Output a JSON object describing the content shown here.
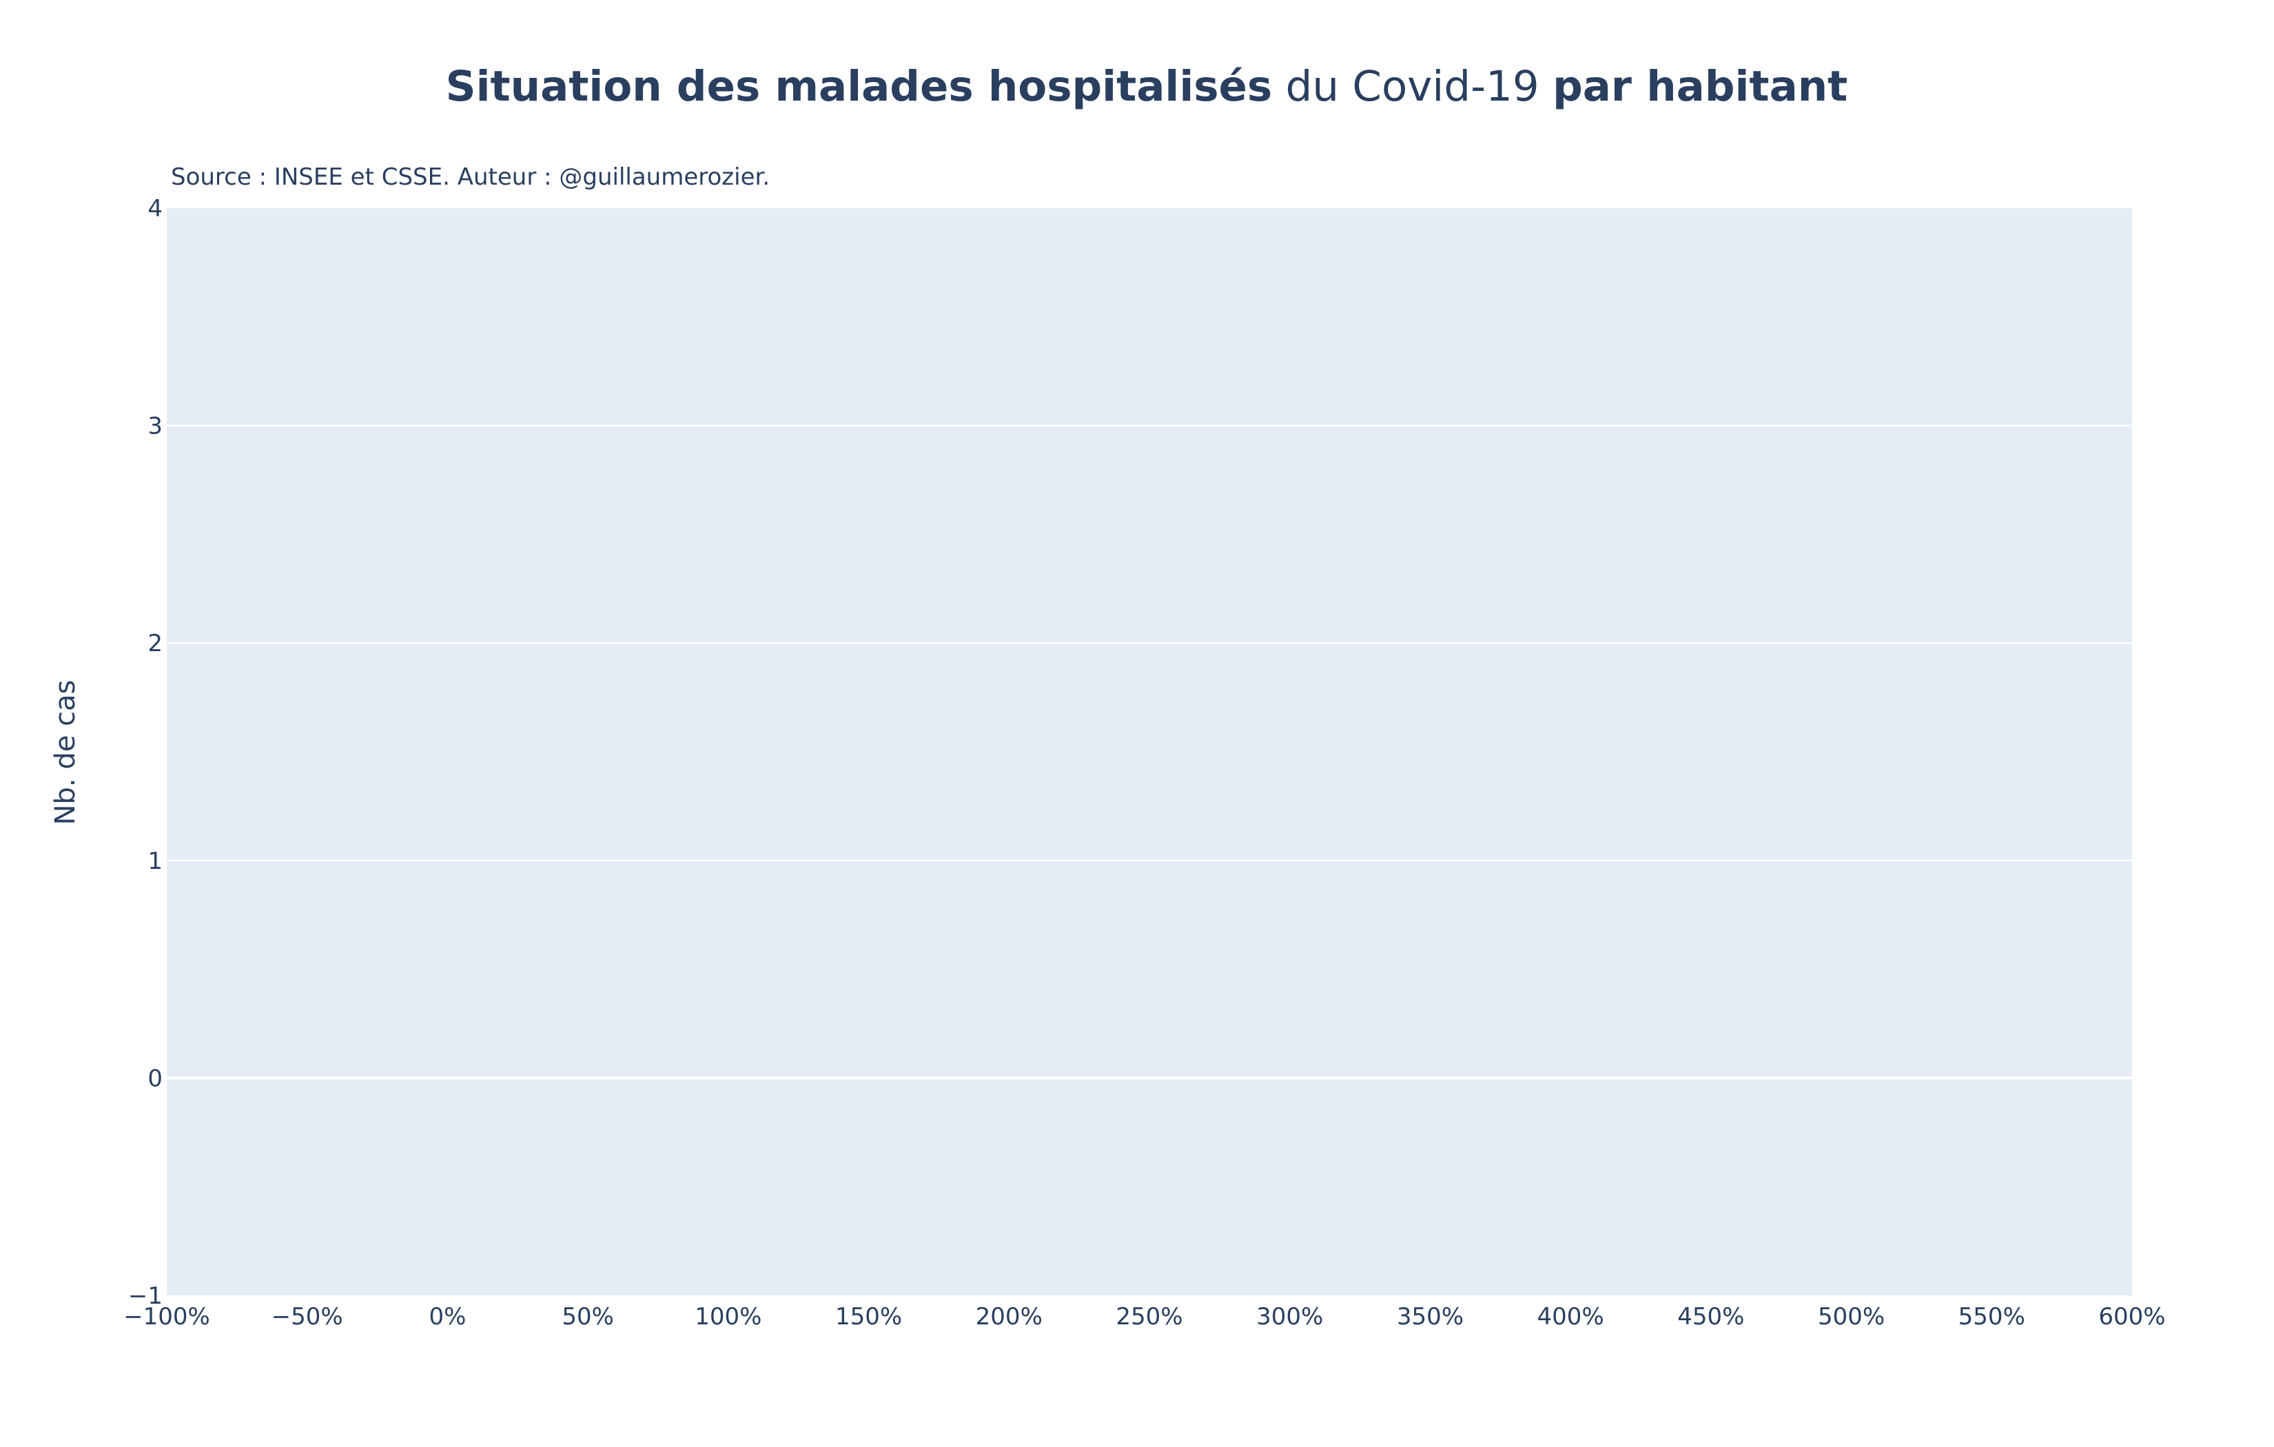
{
  "chart_data": {
    "type": "scatter",
    "title": {
      "bold_1": "Situation des malades hospitalisés",
      "normal": " du Covid-19 ",
      "bold_2": "par habitant"
    },
    "subtitle": "Source : INSEE et CSSE. Auteur : @guillaumerozier.",
    "xlabel": "",
    "ylabel": "Nb. de cas",
    "xlim": [
      -100,
      600
    ],
    "ylim": [
      -1,
      4
    ],
    "x_ticks": [
      -100,
      -50,
      0,
      50,
      100,
      150,
      200,
      250,
      300,
      350,
      400,
      450,
      500,
      550,
      600
    ],
    "x_tick_labels": [
      "−100%",
      "−50%",
      "0%",
      "50%",
      "100%",
      "150%",
      "200%",
      "250%",
      "300%",
      "350%",
      "400%",
      "450%",
      "500%",
      "550%",
      "600%"
    ],
    "y_ticks": [
      -1,
      0,
      1,
      2,
      3,
      4
    ],
    "y_tick_labels": [
      "−1",
      "0",
      "1",
      "2",
      "3",
      "4"
    ],
    "grid": "horizontal",
    "series": []
  },
  "colors": {
    "plot_background": "#e5ecf6",
    "grid": "#ffffff",
    "text": "#2a3f5f"
  }
}
